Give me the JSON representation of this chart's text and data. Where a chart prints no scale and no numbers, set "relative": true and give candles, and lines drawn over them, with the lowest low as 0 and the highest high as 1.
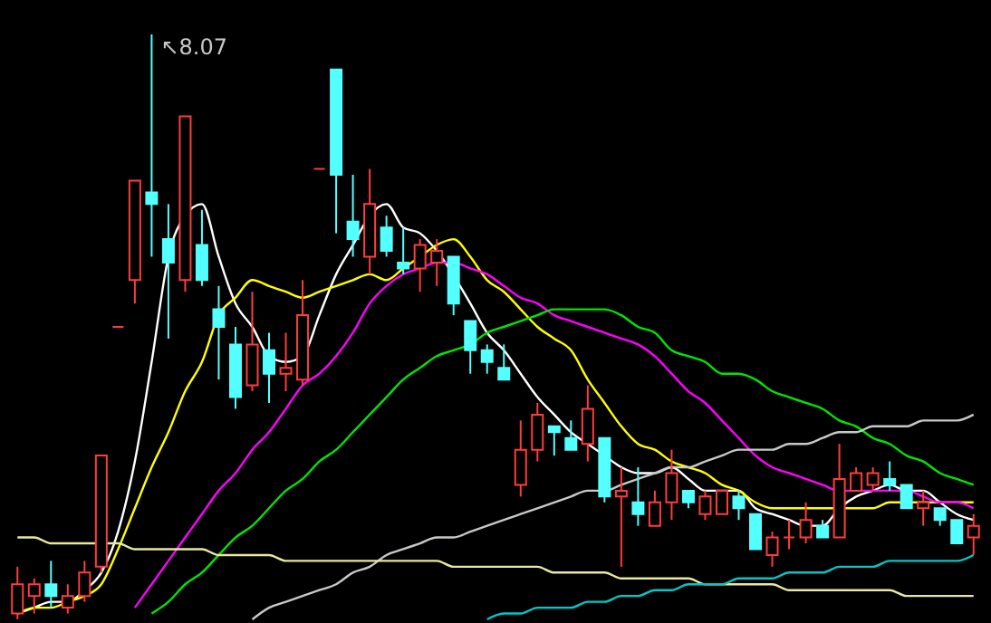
{
  "chart_data": {
    "type": "candlestick",
    "relative": true,
    "categories": [
      null,
      null,
      null,
      null,
      null,
      null,
      null,
      null,
      null,
      null,
      null,
      null,
      null,
      null,
      null,
      null,
      null,
      null,
      null,
      null,
      null,
      null,
      null,
      null,
      null,
      null,
      null,
      null,
      null,
      null,
      null,
      null,
      null,
      null,
      null,
      null,
      null,
      null,
      null,
      null,
      null,
      null,
      null,
      null,
      null,
      null,
      null,
      null,
      null,
      null,
      null,
      null,
      null,
      null,
      null,
      null,
      null,
      null
    ],
    "ohlc": [
      [
        0.01,
        0.09,
        0,
        0.06
      ],
      [
        0.04,
        0.07,
        0.01,
        0.06
      ],
      [
        0.06,
        0.1,
        0.02,
        0.04
      ],
      [
        0.02,
        0.06,
        0.01,
        0.04
      ],
      [
        0.04,
        0.1,
        0.03,
        0.08
      ],
      [
        0.09,
        0.28,
        0.08,
        0.28
      ],
      [
        0.5,
        0.5,
        0.5,
        0.5
      ],
      [
        0.58,
        0.75,
        0.54,
        0.75
      ],
      [
        0.73,
        1,
        0.62,
        0.71
      ],
      [
        0.65,
        0.71,
        0.48,
        0.61
      ],
      [
        0.58,
        0.86,
        0.56,
        0.86
      ],
      [
        0.64,
        0.7,
        0.57,
        0.58
      ],
      [
        0.53,
        0.57,
        0.41,
        0.5
      ],
      [
        0.47,
        0.5,
        0.36,
        0.38
      ],
      [
        0.4,
        0.56,
        0.39,
        0.47
      ],
      [
        0.46,
        0.49,
        0.37,
        0.42
      ],
      [
        0.42,
        0.49,
        0.39,
        0.43
      ],
      [
        0.41,
        0.58,
        0.4,
        0.52
      ],
      [
        0.77,
        0.77,
        0.77,
        0.77
      ],
      [
        0.94,
        0.94,
        0.66,
        0.76
      ],
      [
        0.68,
        0.76,
        0.62,
        0.65
      ],
      [
        0.62,
        0.77,
        0.59,
        0.71
      ],
      [
        0.67,
        0.69,
        0.62,
        0.63
      ],
      [
        0.61,
        0.67,
        0.59,
        0.6
      ],
      [
        0.6,
        0.65,
        0.56,
        0.64
      ],
      [
        0.61,
        0.65,
        0.57,
        0.63
      ],
      [
        0.62,
        0.62,
        0.52,
        0.54
      ],
      [
        0.51,
        0.51,
        0.42,
        0.46
      ],
      [
        0.46,
        0.47,
        0.42,
        0.44
      ],
      [
        0.43,
        0.47,
        0.41,
        0.41
      ],
      [
        0.23,
        0.34,
        0.21,
        0.29
      ],
      [
        0.29,
        0.37,
        0.27,
        0.35
      ],
      [
        0.33,
        0.33,
        0.28,
        0.32
      ],
      [
        0.31,
        0.34,
        0.29,
        0.29
      ],
      [
        0.3,
        0.4,
        0.27,
        0.36
      ],
      [
        0.31,
        0.31,
        0.2,
        0.21
      ],
      [
        0.21,
        0.26,
        0.09,
        0.22
      ],
      [
        0.2,
        0.26,
        0.16,
        0.18
      ],
      [
        0.16,
        0.22,
        0.16,
        0.2
      ],
      [
        0.2,
        0.29,
        0.17,
        0.25
      ],
      [
        0.22,
        0.22,
        0.19,
        0.2
      ],
      [
        0.18,
        0.22,
        0.17,
        0.21
      ],
      [
        0.18,
        0.22,
        0.18,
        0.22
      ],
      [
        0.21,
        0.22,
        0.17,
        0.19
      ],
      [
        0.18,
        0.18,
        0.12,
        0.12
      ],
      [
        0.11,
        0.15,
        0.09,
        0.14
      ],
      [
        0.14,
        0.17,
        0.12,
        0.14
      ],
      [
        0.14,
        0.2,
        0.13,
        0.17
      ],
      [
        0.16,
        0.17,
        0.14,
        0.14
      ],
      [
        0.14,
        0.3,
        0.14,
        0.24
      ],
      [
        0.22,
        0.26,
        0.22,
        0.25
      ],
      [
        0.23,
        0.26,
        0.22,
        0.25
      ],
      [
        0.24,
        0.27,
        0.22,
        0.23
      ],
      [
        0.23,
        0.23,
        0.19,
        0.19
      ],
      [
        0.19,
        0.22,
        0.16,
        0.2
      ],
      [
        0.19,
        0.19,
        0.16,
        0.17
      ],
      [
        0.17,
        0.17,
        0.13,
        0.13
      ],
      [
        0.14,
        0.18,
        0.11,
        0.16
      ]
    ],
    "colors": [
      "#ff3c3c",
      "#ff3c3c",
      "#54ffff",
      "#ff3c3c",
      "#ff3c3c",
      "#ff3c3c",
      "#ff3c3c",
      "#ff3c3c",
      "#54ffff",
      "#54ffff",
      "#ff3c3c",
      "#54ffff",
      "#54ffff",
      "#54ffff",
      "#ff3c3c",
      "#54ffff",
      "#ff3c3c",
      "#ff3c3c",
      "#ff3c3c",
      "#54ffff",
      "#54ffff",
      "#ff3c3c",
      "#54ffff",
      "#54ffff",
      "#ff3c3c",
      "#ff3c3c",
      "#54ffff",
      "#54ffff",
      "#54ffff",
      "#54ffff",
      "#ff3c3c",
      "#ff3c3c",
      "#54ffff",
      "#54ffff",
      "#ff3c3c",
      "#54ffff",
      "#ff3c3c",
      "#54ffff",
      "#ff3c3c",
      "#ff3c3c",
      "#54ffff",
      "#ff3c3c",
      "#ff3c3c",
      "#54ffff",
      "#54ffff",
      "#ff3c3c",
      "#ff3c3c",
      "#ff3c3c",
      "#54ffff",
      "#ff3c3c",
      "#ff3c3c",
      "#ff3c3c",
      "#54ffff",
      "#54ffff",
      "#ff3c3c",
      "#54ffff",
      "#54ffff",
      "#ff3c3c"
    ],
    "series": [
      {
        "type": "line",
        "color": "#ffffff",
        "values": [
          0.01,
          0.02,
          0.03,
          0.03,
          0.05,
          0.08,
          0.15,
          0.27,
          0.44,
          0.62,
          0.69,
          0.71,
          0.62,
          0.54,
          0.5,
          0.45,
          0.44,
          0.45,
          0.52,
          0.59,
          0.64,
          0.69,
          0.71,
          0.67,
          0.66,
          0.63,
          null,
          0.54,
          0.49,
          0.46,
          0.42,
          0.38,
          0.35,
          0.32,
          0.3,
          0.28,
          0.26,
          0.25,
          0.25,
          0.26,
          0.24,
          0.22,
          0.22,
          0.22,
          0.19,
          0.18,
          0.17,
          0.16,
          0.16,
          0.19,
          0.21,
          0.22,
          0.23,
          0.22,
          0.22,
          0.2,
          0.18,
          0.17
        ]
      },
      {
        "type": "line",
        "color": "#ffff00",
        "values": [
          0.01,
          0.02,
          0.02,
          0.03,
          0.04,
          0.06,
          0.12,
          0.19,
          0.26,
          0.32,
          0.39,
          0.44,
          0.52,
          0.55,
          0.58,
          0.57,
          0.56,
          0.55,
          0.56,
          0.57,
          0.58,
          0.59,
          0.58,
          0.6,
          0.62,
          0.64,
          0.65,
          0.62,
          0.58,
          0.56,
          0.53,
          0.5,
          0.48,
          0.46,
          0.41,
          0.37,
          0.33,
          0.3,
          0.29,
          0.27,
          0.26,
          0.25,
          0.23,
          0.22,
          0.2,
          0.19,
          0.19,
          0.19,
          0.19,
          0.19,
          0.19,
          0.19,
          0.2,
          0.2,
          0.2,
          0.2,
          0.2,
          0.2
        ]
      },
      {
        "type": "line",
        "color": "#ff00ff",
        "values": [
          null,
          null,
          null,
          null,
          null,
          null,
          null,
          0.02,
          0.06,
          0.1,
          0.14,
          0.18,
          0.22,
          0.25,
          0.29,
          0.32,
          0.36,
          0.4,
          0.42,
          0.45,
          0.49,
          0.54,
          0.57,
          0.59,
          0.6,
          0.61,
          0.61,
          0.6,
          0.59,
          0.57,
          0.55,
          0.54,
          0.52,
          0.51,
          0.5,
          0.49,
          0.48,
          0.47,
          0.45,
          0.42,
          0.39,
          0.37,
          0.34,
          0.31,
          0.28,
          0.26,
          0.25,
          0.24,
          0.23,
          0.22,
          0.22,
          0.22,
          0.22,
          0.22,
          0.21,
          0.2,
          0.2,
          0.19
        ]
      },
      {
        "type": "line",
        "color": "#00e600",
        "values": [
          null,
          null,
          null,
          null,
          null,
          null,
          null,
          null,
          0.01,
          0.03,
          0.06,
          0.08,
          0.11,
          0.14,
          0.16,
          0.19,
          0.22,
          0.24,
          0.27,
          0.29,
          0.32,
          0.35,
          0.38,
          0.41,
          0.43,
          0.45,
          0.46,
          0.47,
          0.49,
          0.5,
          0.51,
          0.52,
          0.53,
          0.53,
          0.53,
          0.53,
          0.52,
          0.5,
          0.49,
          0.46,
          0.45,
          0.44,
          0.42,
          0.42,
          0.41,
          0.39,
          0.38,
          0.37,
          0.36,
          0.34,
          0.33,
          0.31,
          0.3,
          0.28,
          0.27,
          0.25,
          0.24,
          0.23
        ]
      },
      {
        "type": "line",
        "color": "#c8c8c8",
        "values": [
          null,
          null,
          null,
          null,
          null,
          null,
          null,
          null,
          null,
          null,
          null,
          null,
          null,
          null,
          0.0,
          0.02,
          0.03,
          0.04,
          0.05,
          0.06,
          0.08,
          0.09,
          0.11,
          0.12,
          0.13,
          0.14,
          0.14,
          0.15,
          0.16,
          0.17,
          0.18,
          0.19,
          0.2,
          0.21,
          0.22,
          0.22,
          0.23,
          0.24,
          0.25,
          0.26,
          0.26,
          0.27,
          0.28,
          0.29,
          0.29,
          0.29,
          0.3,
          0.3,
          0.31,
          0.32,
          0.32,
          0.33,
          0.33,
          0.33,
          0.34,
          0.34,
          0.34,
          0.35
        ]
      },
      {
        "type": "line",
        "color": "#e8e8a0",
        "values": [
          0.14,
          0.14,
          0.13,
          0.13,
          0.13,
          0.13,
          0.13,
          0.12,
          0.12,
          0.12,
          0.12,
          0.12,
          0.11,
          0.11,
          0.11,
          0.11,
          0.1,
          0.1,
          0.1,
          0.1,
          0.1,
          0.1,
          0.1,
          0.1,
          0.1,
          0.1,
          0.09,
          0.09,
          0.09,
          0.09,
          0.09,
          0.09,
          0.08,
          0.08,
          0.08,
          0.08,
          0.07,
          0.07,
          0.07,
          0.07,
          0.07,
          0.06,
          0.06,
          0.06,
          0.06,
          0.06,
          0.05,
          0.05,
          0.05,
          0.05,
          0.05,
          0.05,
          0.05,
          0.04,
          0.04,
          0.04,
          0.04,
          0.04
        ]
      },
      {
        "type": "line",
        "color": "#00c8c8",
        "values": [
          null,
          null,
          null,
          null,
          null,
          null,
          null,
          null,
          null,
          null,
          null,
          null,
          null,
          null,
          null,
          null,
          null,
          null,
          null,
          null,
          null,
          null,
          null,
          null,
          null,
          null,
          null,
          null,
          0.0,
          0.01,
          0.01,
          0.02,
          0.02,
          0.02,
          0.03,
          0.03,
          0.04,
          0.04,
          0.05,
          0.05,
          0.06,
          0.06,
          0.06,
          0.07,
          0.07,
          0.07,
          0.08,
          0.08,
          0.08,
          0.09,
          0.09,
          0.09,
          0.1,
          0.1,
          0.1,
          0.1,
          0.1,
          0.11
        ]
      }
    ],
    "annotations": [
      "↖8.07"
    ]
  }
}
